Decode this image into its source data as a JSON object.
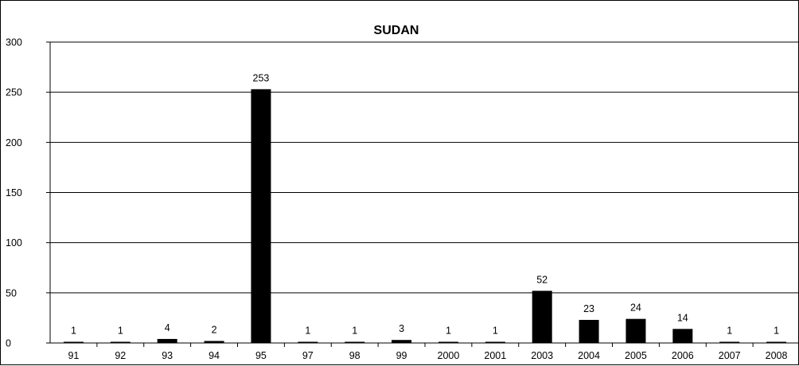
{
  "chart_data": {
    "type": "bar",
    "title": "SUDAN",
    "xlabel": "",
    "ylabel": "",
    "categories": [
      "91",
      "92",
      "93",
      "94",
      "95",
      "97",
      "98",
      "99",
      "2000",
      "2001",
      "2003",
      "2004",
      "2005",
      "2006",
      "2007",
      "2008"
    ],
    "values": [
      1,
      1,
      4,
      2,
      253,
      1,
      1,
      3,
      1,
      1,
      52,
      23,
      24,
      14,
      1,
      1
    ],
    "ylim": [
      0,
      300
    ],
    "yticks": [
      0,
      50,
      100,
      150,
      200,
      250,
      300
    ],
    "grid": true,
    "legend": "none",
    "bar_color": "#000000",
    "data_labels": true
  }
}
